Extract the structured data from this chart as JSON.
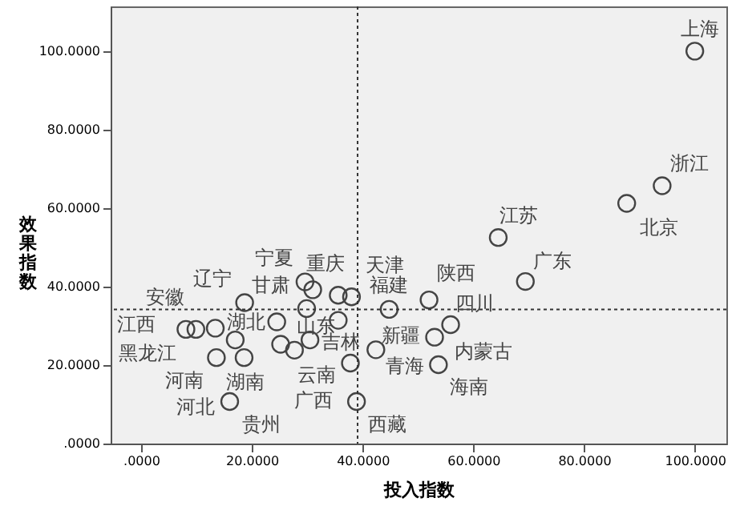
{
  "chart_data": {
    "type": "scatter",
    "xlabel": "投入指数",
    "ylabel": "效果指数",
    "x": [
      18.7,
      8.1,
      9.9,
      13.4,
      13.6,
      18.6,
      17.0,
      16.0,
      24.5,
      29.9,
      25.2,
      27.7,
      30.5,
      29.6,
      31.0,
      35.6,
      38.0,
      35.6,
      37.8,
      38.9,
      100,
      94.1,
      87.7,
      64.5,
      69.4,
      52.0,
      44.8,
      55.9,
      53.0,
      42.4,
      53.7
    ],
    "values": [
      35.9,
      29.1,
      29.1,
      29.4,
      21.9,
      21.9,
      26.4,
      10.7,
      31.0,
      34.4,
      25.3,
      23.8,
      26.4,
      41.2,
      39.2,
      37.8,
      37.4,
      31.4,
      20.5,
      10.7,
      100,
      65.7,
      61.2,
      52.5,
      41.3,
      36.6,
      34.2,
      30.3,
      27.1,
      23.9,
      20.1
    ],
    "color": "#444444",
    "marker": "circle",
    "grid": false,
    "xlim": [
      -5.5,
      105.7
    ],
    "ylim": [
      0,
      111.4
    ],
    "xticks": [
      {
        "value": 0,
        "label": ".0000"
      },
      {
        "value": 20,
        "label": "20.0000"
      },
      {
        "value": 40,
        "label": "40.0000"
      },
      {
        "value": 60,
        "label": "60.0000"
      },
      {
        "value": 80,
        "label": "80.0000"
      },
      {
        "value": 100,
        "label": "100.0000"
      }
    ],
    "yticks": [
      {
        "value": 0,
        "label": ".0000"
      },
      {
        "value": 20,
        "label": "20.0000"
      },
      {
        "value": 40,
        "label": "40.0000"
      },
      {
        "value": 60,
        "label": "60.0000"
      },
      {
        "value": 80,
        "label": "80.0000"
      },
      {
        "value": 100,
        "label": "100.0000"
      }
    ],
    "ref_lines": [
      {
        "axis": "x",
        "value": 39.1,
        "color": "#333333",
        "line_style": "dotted"
      },
      {
        "axis": "y",
        "value": 34.2,
        "color": "#333333",
        "line_style": "dotted"
      }
    ],
    "annotations": [
      {
        "text": "上海",
        "x": 100,
        "y": 100
      },
      {
        "text": "浙江",
        "x": 94.1,
        "y": 65.7
      },
      {
        "text": "北京",
        "x": 87.7,
        "y": 61.2
      },
      {
        "text": "江苏",
        "x": 64.5,
        "y": 52.5
      },
      {
        "text": "广东",
        "x": 69.4,
        "y": 41.3
      },
      {
        "text": "陕西",
        "x": 52.0,
        "y": 36.6
      },
      {
        "text": "天津",
        "x": 38.0,
        "y": 37.4
      },
      {
        "text": "福建",
        "x": 44.8,
        "y": 34.2
      },
      {
        "text": "四川",
        "x": 55.9,
        "y": 30.3
      },
      {
        "text": "新疆",
        "x": 53.0,
        "y": 27.1
      },
      {
        "text": "内蒙古",
        "x": 53.7,
        "y": 20.1
      },
      {
        "text": "青海",
        "x": 53.7,
        "y": 20.1
      },
      {
        "text": "海南",
        "x": 53.7,
        "y": 20.1
      },
      {
        "text": "西藏",
        "x": 38.9,
        "y": 10.7
      },
      {
        "text": "宁夏",
        "x": 29.6,
        "y": 41.2
      },
      {
        "text": "重庆",
        "x": 35.6,
        "y": 37.8
      },
      {
        "text": "辽宁",
        "x": 18.7,
        "y": 35.9
      },
      {
        "text": "甘肃",
        "x": 29.6,
        "y": 41.2
      },
      {
        "text": "安徽",
        "x": 8.1,
        "y": 29.1
      },
      {
        "text": "江西",
        "x": 8.1,
        "y": 29.1
      },
      {
        "text": "湖北",
        "x": 24.5,
        "y": 31.0
      },
      {
        "text": "山东",
        "x": 29.9,
        "y": 34.4
      },
      {
        "text": "吉林",
        "x": 42.4,
        "y": 23.9
      },
      {
        "text": "黑龙江",
        "x": 13.6,
        "y": 21.9
      },
      {
        "text": "河南",
        "x": 13.6,
        "y": 21.9
      },
      {
        "text": "湖南",
        "x": 18.6,
        "y": 21.9
      },
      {
        "text": "云南",
        "x": 37.8,
        "y": 20.5
      },
      {
        "text": "河北",
        "x": 16.0,
        "y": 10.7
      },
      {
        "text": "广西",
        "x": 38.9,
        "y": 10.7
      },
      {
        "text": "贵州",
        "x": 16.0,
        "y": 10.7
      }
    ]
  }
}
